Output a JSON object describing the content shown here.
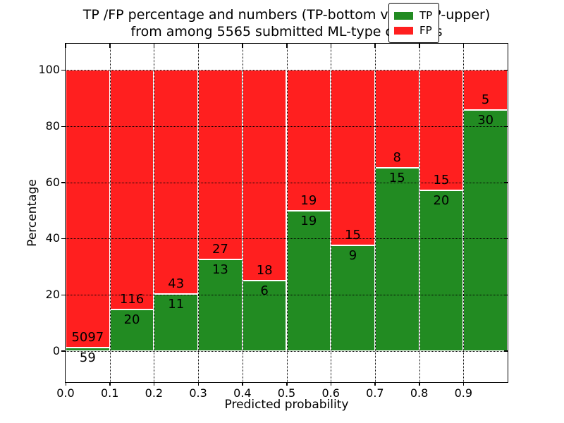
{
  "title": {
    "line1": "TP /FP percentage and numbers (TP-bottom value, FP-upper)",
    "line2": "from among 5565 submitted ML-type contacts"
  },
  "axes": {
    "xlabel": "Predicted probability",
    "ylabel": "Percentage",
    "x_ticks": [
      {
        "label": "0.0",
        "value": 0.0
      },
      {
        "label": "0.1",
        "value": 0.1
      },
      {
        "label": "0.2",
        "value": 0.2
      },
      {
        "label": "0.3",
        "value": 0.3
      },
      {
        "label": "0.4",
        "value": 0.4
      },
      {
        "label": "0.5",
        "value": 0.5
      },
      {
        "label": "0.6",
        "value": 0.6
      },
      {
        "label": "0.7",
        "value": 0.7
      },
      {
        "label": "0.8",
        "value": 0.8
      },
      {
        "label": "0.9",
        "value": 0.9
      }
    ],
    "y_ticks": [
      {
        "label": "0",
        "value": 0
      },
      {
        "label": "20",
        "value": 20
      },
      {
        "label": "40",
        "value": 40
      },
      {
        "label": "60",
        "value": 60
      },
      {
        "label": "80",
        "value": 80
      },
      {
        "label": "100",
        "value": 100
      }
    ]
  },
  "legend": [
    {
      "label": "TP",
      "color": "#228b22"
    },
    {
      "label": "FP",
      "color": "#ff1f1f"
    }
  ],
  "chart_data": {
    "type": "bar",
    "stacked": true,
    "normalized_to_percent": true,
    "title": "TP /FP percentage and numbers (TP-bottom value, FP-upper) from among 5565 submitted ML-type contacts",
    "xlabel": "Predicted probability",
    "ylabel": "Percentage",
    "bin_start": [
      0.0,
      0.1,
      0.2,
      0.3,
      0.4,
      0.5,
      0.6,
      0.7,
      0.8,
      0.9
    ],
    "bin_width": 0.1,
    "series": [
      {
        "name": "TP",
        "color": "#228b22",
        "position": "bottom",
        "counts": [
          59,
          20,
          11,
          13,
          6,
          19,
          9,
          15,
          20,
          30
        ]
      },
      {
        "name": "FP",
        "color": "#ff1f1f",
        "position": "top",
        "counts": [
          5097,
          116,
          43,
          27,
          18,
          19,
          15,
          8,
          15,
          5
        ]
      }
    ],
    "total_contacts": 5565,
    "bar_edge_color": "#ffffff",
    "grid": "dotted",
    "legend_position": "upper right",
    "xlim": [
      0.0,
      1.0
    ],
    "ylim": [
      -11.1,
      109.4
    ]
  }
}
